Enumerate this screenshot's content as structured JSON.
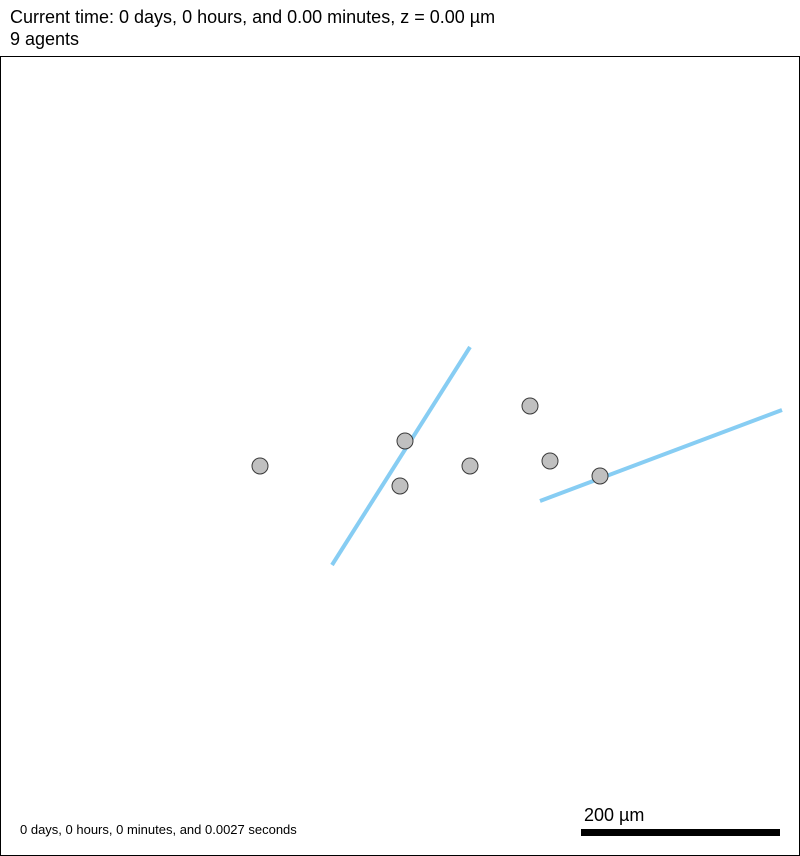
{
  "header": {
    "time_line": "Current time: 0 days, 0 hours, and 0.00 minutes, z = 0.00 µm",
    "agents_line": "9 agents"
  },
  "footer": {
    "elapsed": "0 days, 0 hours, 0 minutes, and 0.0027 seconds",
    "scale_label": "200 µm"
  },
  "colors": {
    "agent_fill": "#c0c0c0",
    "agent_stroke": "#3a3a3a",
    "fiber": "#87cdf3"
  }
}
